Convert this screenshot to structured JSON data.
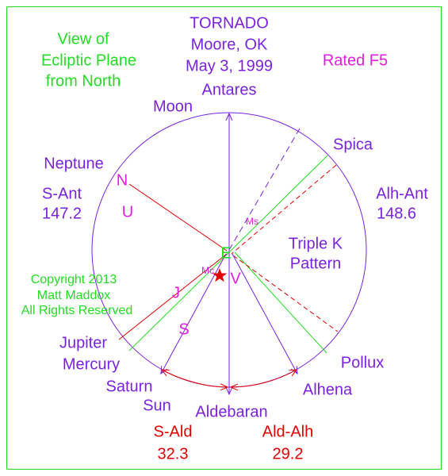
{
  "caption": {
    "line1": "View of",
    "line2": "Ecliptic Plane",
    "line3": "from North"
  },
  "title": {
    "line1": "TORNADO",
    "line2": "Moore, OK",
    "line3": "May 3, 1999"
  },
  "rating": "Rated F5",
  "copyright": {
    "line1": "Copyright 2013",
    "line2": "Matt Maddox",
    "line3": "All Rights Reserved"
  },
  "pattern": {
    "line1": "Triple K",
    "line2": "Pattern"
  },
  "stars": {
    "top": "Antares",
    "right_upper": "Spica",
    "right_lower": "Pollux",
    "bottom_right": "Alhena",
    "bottom": "Aldebaran"
  },
  "planets": {
    "moon": "Moon",
    "neptune": "Neptune",
    "jupiter": "Jupiter",
    "mercury": "Mercury",
    "saturn": "Saturn",
    "sun": "Sun"
  },
  "markers": {
    "n": "N",
    "u": "U",
    "ms": "Ms",
    "e": "E",
    "mc": "Mc",
    "v": "V",
    "j": "J",
    "s": "S"
  },
  "angles": {
    "s_ant": {
      "label": "S-Ant",
      "value": "147.2"
    },
    "alh_ant": {
      "label": "Alh-Ant",
      "value": "148.6"
    },
    "s_ald": {
      "label": "S-Ald",
      "value": "32.3"
    },
    "ald_alh": {
      "label": "Ald-Alh",
      "value": "29.2"
    }
  }
}
